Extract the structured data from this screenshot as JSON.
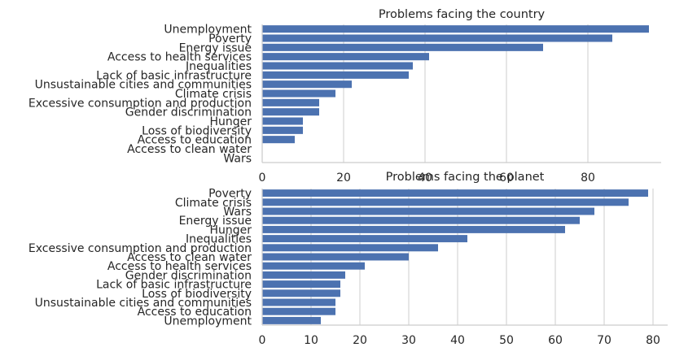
{
  "colors": {
    "bar": "#4c72b0",
    "grid": "#cccccc",
    "text": "#262626"
  },
  "chart_data": [
    {
      "type": "bar",
      "orientation": "horizontal",
      "title": "Problems facing the country",
      "categories": [
        "Unemployment",
        "Poverty",
        "Energy issue",
        "Access to health services",
        "Inequalities",
        "Lack of basic infrastructure",
        "Unsustainable cities and communities",
        "Climate crisis",
        "Excessive consumption and production",
        "Gender discrimination",
        "Hunger",
        "Loss of biodiversity",
        "Access to education",
        "Access to clean water",
        "Wars"
      ],
      "values": [
        95,
        86,
        69,
        41,
        37,
        36,
        22,
        18,
        14,
        14,
        10,
        10,
        8,
        0,
        0
      ],
      "xlim": [
        0,
        98
      ],
      "xticks": [
        0,
        20,
        40,
        60,
        80
      ],
      "grid": true
    },
    {
      "type": "bar",
      "orientation": "horizontal",
      "title": "Problems facing the planet",
      "categories": [
        "Poverty",
        "Climate crisis",
        "Wars",
        "Energy issue",
        "Hunger",
        "Inequalities",
        "Excessive consumption and production",
        "Access to clean water",
        "Access to health services",
        "Gender discrimination",
        "Lack of basic infrastructure",
        "Loss of biodiversity",
        "Unsustainable cities and communities",
        "Access to education",
        "Unemployment"
      ],
      "values": [
        79,
        75,
        68,
        65,
        62,
        42,
        36,
        30,
        21,
        17,
        16,
        16,
        15,
        15,
        12
      ],
      "xlim": [
        0,
        83
      ],
      "xticks": [
        0,
        10,
        20,
        30,
        40,
        50,
        60,
        70,
        80
      ],
      "grid": true
    }
  ]
}
